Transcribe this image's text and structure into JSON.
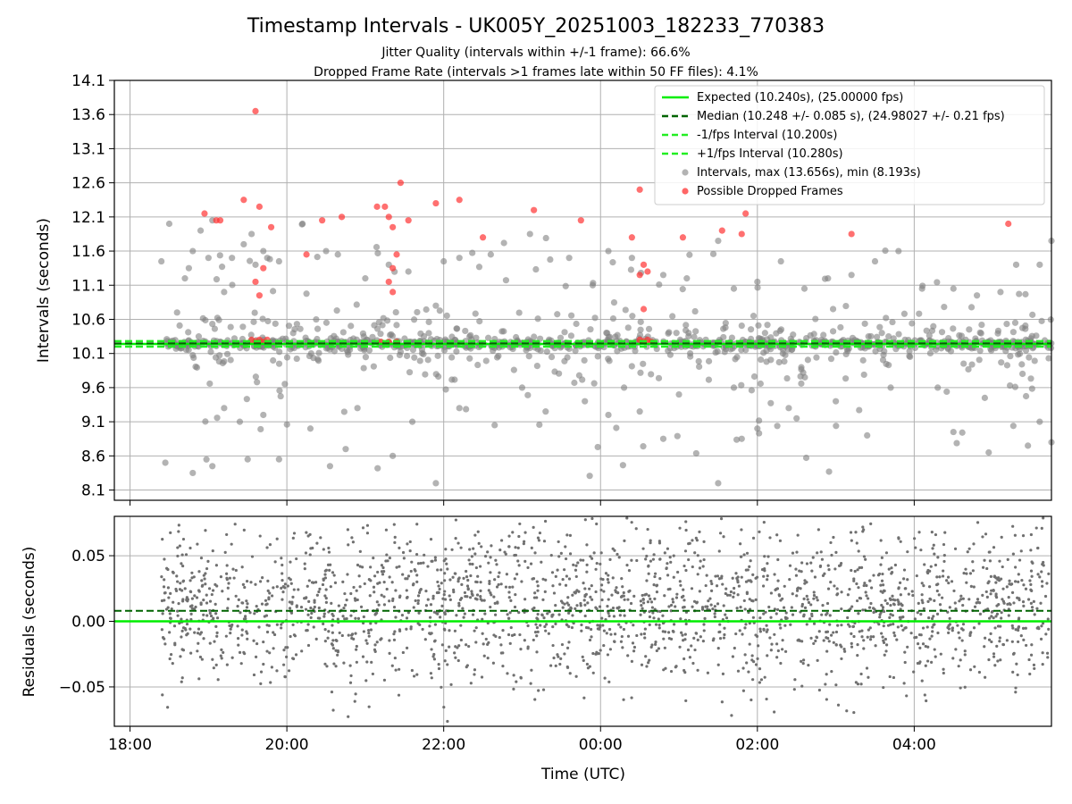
{
  "chart_data": [
    {
      "type": "scatter",
      "title": "Timestamp Intervals - UK005Y_20251003_182233_770383",
      "subtitle_lines": [
        "Jitter Quality (intervals within +/-1 frame): 66.6%",
        "Dropped Frame Rate (intervals >1 frames late within 50 FF files): 4.1%"
      ],
      "xlabel": "",
      "ylabel": "Intervals (seconds)",
      "xlim": [
        17.8,
        29.75
      ],
      "ylim": [
        7.95,
        14.1
      ],
      "yticks": [
        8.1,
        8.6,
        9.1,
        9.6,
        10.1,
        10.6,
        11.1,
        11.6,
        12.1,
        12.6,
        13.1,
        13.6,
        14.1
      ],
      "ytick_labels": [
        "8.1",
        "8.6",
        "9.1",
        "9.6",
        "10.1",
        "10.6",
        "11.1",
        "11.6",
        "12.1",
        "12.6",
        "13.1",
        "13.6",
        "14.1"
      ],
      "xticks": [
        18,
        20,
        22,
        24,
        26,
        28
      ],
      "grid": true,
      "legend_position": "top-right",
      "reference_lines": [
        {
          "name": "Expected (10.240s), (25.00000 fps)",
          "y": 10.24,
          "style": "solid",
          "color": "#00ee00"
        },
        {
          "name": "Median (10.248 +/- 0.085 s), (24.98027 +/- 0.21 fps)",
          "y": 10.248,
          "style": "dashed",
          "color": "#006400"
        },
        {
          "name": "-1/fps Interval (10.200s)",
          "y": 10.2,
          "style": "dashed",
          "color": "#22ee22"
        },
        {
          "name": "+1/fps Interval (10.280s)",
          "y": 10.28,
          "style": "dashed",
          "color": "#22ee22"
        }
      ],
      "series": [
        {
          "name": "Intervals, max (13.656s), min (8.193s)",
          "color": "#808080",
          "max": 13.656,
          "min": 8.193,
          "x_start": 18.45,
          "x_end": 29.75,
          "typical": 10.24,
          "points": [
            [
              18.4,
              11.45
            ],
            [
              18.5,
              12.0
            ],
            [
              18.6,
              10.7
            ],
            [
              18.7,
              11.2
            ],
            [
              18.75,
              11.35
            ],
            [
              18.8,
              11.6
            ],
            [
              18.9,
              11.9
            ],
            [
              19.0,
              11.5
            ],
            [
              19.05,
              12.05
            ],
            [
              19.2,
              11.0
            ],
            [
              19.3,
              11.5
            ],
            [
              19.45,
              11.7
            ],
            [
              19.55,
              11.85
            ],
            [
              19.6,
              11.4
            ],
            [
              19.7,
              11.6
            ],
            [
              19.75,
              11.5
            ],
            [
              19.9,
              11.45
            ],
            [
              20.2,
              12.0
            ],
            [
              20.5,
              11.6
            ],
            [
              20.65,
              11.55
            ],
            [
              21.0,
              11.2
            ],
            [
              21.3,
              11.4
            ],
            [
              21.55,
              11.3
            ],
            [
              21.9,
              10.8
            ],
            [
              22.0,
              11.45
            ],
            [
              22.2,
              11.5
            ],
            [
              22.6,
              11.55
            ],
            [
              23.1,
              11.85
            ],
            [
              23.6,
              11.5
            ],
            [
              23.9,
              11.1
            ],
            [
              24.1,
              11.6
            ],
            [
              24.4,
              11.5
            ],
            [
              24.8,
              11.25
            ],
            [
              25.1,
              11.2
            ],
            [
              25.5,
              11.75
            ],
            [
              25.7,
              11.05
            ],
            [
              26.0,
              11.15
            ],
            [
              26.3,
              11.45
            ],
            [
              26.6,
              11.05
            ],
            [
              26.9,
              11.2
            ],
            [
              27.2,
              11.25
            ],
            [
              27.5,
              11.45
            ],
            [
              27.8,
              11.6
            ],
            [
              28.1,
              11.05
            ],
            [
              28.5,
              11.05
            ],
            [
              28.8,
              10.95
            ],
            [
              29.1,
              11.0
            ],
            [
              29.3,
              11.4
            ],
            [
              29.6,
              11.4
            ],
            [
              29.75,
              11.75
            ],
            [
              18.45,
              8.5
            ],
            [
              18.8,
              8.35
            ],
            [
              19.05,
              8.45
            ],
            [
              19.5,
              8.55
            ],
            [
              19.9,
              8.55
            ],
            [
              20.55,
              8.45
            ],
            [
              20.75,
              8.7
            ],
            [
              21.35,
              8.6
            ],
            [
              21.9,
              8.2
            ],
            [
              22.65,
              9.05
            ],
            [
              23.3,
              9.25
            ],
            [
              24.1,
              9.2
            ],
            [
              24.5,
              9.25
            ],
            [
              24.8,
              8.85
            ],
            [
              25.5,
              8.2
            ],
            [
              25.8,
              8.85
            ],
            [
              26.0,
              9.0
            ],
            [
              26.5,
              9.15
            ],
            [
              27.4,
              8.9
            ],
            [
              28.5,
              8.95
            ],
            [
              28.95,
              8.65
            ],
            [
              29.45,
              8.75
            ],
            [
              29.75,
              8.8
            ],
            [
              19.2,
              9.3
            ],
            [
              19.4,
              9.1
            ],
            [
              19.7,
              9.2
            ],
            [
              20.3,
              9.0
            ],
            [
              20.9,
              9.3
            ],
            [
              21.6,
              9.1
            ],
            [
              22.2,
              9.3
            ],
            [
              23.0,
              9.6
            ],
            [
              23.8,
              9.4
            ],
            [
              24.3,
              9.6
            ],
            [
              25.0,
              9.5
            ],
            [
              25.7,
              9.6
            ],
            [
              26.4,
              9.3
            ],
            [
              27.0,
              9.4
            ],
            [
              27.7,
              9.6
            ],
            [
              28.3,
              9.6
            ],
            [
              28.9,
              9.45
            ],
            [
              29.6,
              9.1
            ]
          ]
        },
        {
          "name": "Possible Dropped Frames",
          "color": "#ff3333",
          "points": [
            [
              19.6,
              13.65
            ],
            [
              19.45,
              12.35
            ],
            [
              18.95,
              12.15
            ],
            [
              19.1,
              12.05
            ],
            [
              19.15,
              12.05
            ],
            [
              19.65,
              12.25
            ],
            [
              19.8,
              11.95
            ],
            [
              19.7,
              11.35
            ],
            [
              19.65,
              10.95
            ],
            [
              19.6,
              11.15
            ],
            [
              20.25,
              11.55
            ],
            [
              20.45,
              12.05
            ],
            [
              20.7,
              12.1
            ],
            [
              21.15,
              12.25
            ],
            [
              21.25,
              12.25
            ],
            [
              21.3,
              12.1
            ],
            [
              21.35,
              11.95
            ],
            [
              21.4,
              11.55
            ],
            [
              21.35,
              11.35
            ],
            [
              21.3,
              11.15
            ],
            [
              21.35,
              11.0
            ],
            [
              21.45,
              12.6
            ],
            [
              21.55,
              12.05
            ],
            [
              21.9,
              12.3
            ],
            [
              22.2,
              12.35
            ],
            [
              22.5,
              11.8
            ],
            [
              23.15,
              12.2
            ],
            [
              23.75,
              12.05
            ],
            [
              24.4,
              11.8
            ],
            [
              24.5,
              12.5
            ],
            [
              24.5,
              11.25
            ],
            [
              24.55,
              11.4
            ],
            [
              24.6,
              11.3
            ],
            [
              24.55,
              10.75
            ],
            [
              25.05,
              11.8
            ],
            [
              25.55,
              11.9
            ],
            [
              25.8,
              11.85
            ],
            [
              25.85,
              12.15
            ],
            [
              27.2,
              11.85
            ],
            [
              29.2,
              12.0
            ],
            [
              19.55,
              10.3
            ],
            [
              19.6,
              10.28
            ],
            [
              19.65,
              10.3
            ],
            [
              19.7,
              10.27
            ],
            [
              19.75,
              10.3
            ],
            [
              21.2,
              10.27
            ],
            [
              21.3,
              10.27
            ],
            [
              21.4,
              10.27
            ],
            [
              24.5,
              10.3
            ],
            [
              24.55,
              10.28
            ],
            [
              24.6,
              10.3
            ],
            [
              24.65,
              10.27
            ]
          ]
        }
      ]
    },
    {
      "type": "scatter",
      "xlabel": "Time (UTC)",
      "ylabel": "Residuals (seconds)",
      "xlim": [
        17.8,
        29.75
      ],
      "ylim": [
        -0.08,
        0.08
      ],
      "yticks": [
        -0.05,
        0.0,
        0.05
      ],
      "ytick_labels": [
        "−0.05",
        "0.00",
        "0.05"
      ],
      "xticks": [
        18,
        20,
        22,
        24,
        26,
        28
      ],
      "xtick_labels": [
        "18:00",
        "20:00",
        "22:00",
        "00:00",
        "02:00",
        "04:00"
      ],
      "grid": true,
      "reference_lines": [
        {
          "name": "Expected",
          "y": 0.0,
          "style": "solid",
          "color": "#00ee00"
        },
        {
          "name": "Median",
          "y": 0.008,
          "style": "dashed",
          "color": "#006400"
        }
      ],
      "series": [
        {
          "name": "Residuals",
          "color": "#808080",
          "x_start": 18.4,
          "x_end": 29.75,
          "spread": 0.08
        }
      ]
    }
  ]
}
